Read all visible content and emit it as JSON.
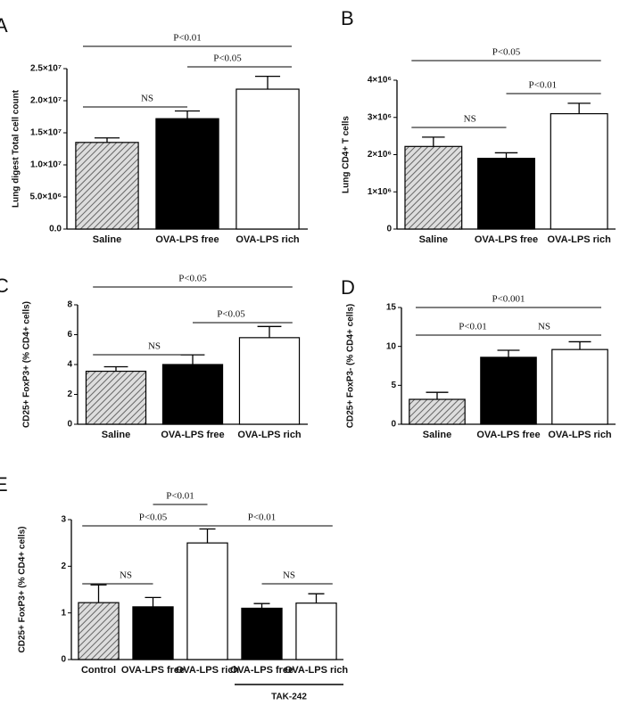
{
  "chart_data": [
    {
      "type": "bar",
      "panel": "A",
      "ylabel": "Lung digest Total cell count",
      "categories": [
        "Saline",
        "OVA-LPS free",
        "OVA-LPS rich"
      ],
      "values": [
        13500000,
        17200000,
        21800000
      ],
      "errors": [
        700000,
        1200000,
        2000000
      ],
      "colors": [
        "#bbbbbb",
        "#000000",
        "#ffffff"
      ],
      "patterns": [
        "hatch",
        "solid",
        "solid"
      ],
      "ylim": [
        0,
        25000000
      ],
      "yticks": [
        {
          "value": 0,
          "label": "0.0"
        },
        {
          "value": 5000000,
          "label": "5.0×10⁶"
        },
        {
          "value": 10000000,
          "label": "1.0×10⁷"
        },
        {
          "value": 15000000,
          "label": "1.5×10⁷"
        },
        {
          "value": 20000000,
          "label": "2.0×10⁷"
        },
        {
          "value": 25000000,
          "label": "2.5×10⁷"
        }
      ],
      "annotations": [
        "P<0.01",
        "P<0.05",
        "NS"
      ]
    },
    {
      "type": "bar",
      "panel": "B",
      "ylabel": "Lung CD4+ T cells",
      "categories": [
        "Saline",
        "OVA-LPS free",
        "OVA-LPS rich"
      ],
      "values": [
        2220000,
        1900000,
        3100000
      ],
      "errors": [
        250000,
        150000,
        280000
      ],
      "colors": [
        "#bbbbbb",
        "#000000",
        "#ffffff"
      ],
      "patterns": [
        "hatch",
        "solid",
        "solid"
      ],
      "ylim": [
        0,
        4000000
      ],
      "yticks": [
        0,
        {
          "value": 1000000,
          "label": "1×10⁶"
        },
        {
          "value": 2000000,
          "label": "2×10⁶"
        },
        {
          "value": 3000000,
          "label": "3×10⁶"
        },
        {
          "value": 4000000,
          "label": "4×10⁶"
        }
      ],
      "annotations": [
        "P<0.05",
        "P<0.01",
        "NS"
      ]
    },
    {
      "type": "bar",
      "panel": "C",
      "ylabel": "CD25+ FoxP3+ (% CD4+ cells)",
      "categories": [
        "Saline",
        "OVA-LPS free",
        "OVA-LPS rich"
      ],
      "values": [
        3.55,
        4.0,
        5.8
      ],
      "errors": [
        0.3,
        0.65,
        0.75
      ],
      "colors": [
        "#bbbbbb",
        "#000000",
        "#ffffff"
      ],
      "patterns": [
        "hatch",
        "solid",
        "solid"
      ],
      "ylim": [
        0,
        8
      ],
      "yticks": [
        0,
        2,
        4,
        6,
        8
      ],
      "annotations": [
        "P<0.05",
        "P<0.05",
        "NS"
      ]
    },
    {
      "type": "bar",
      "panel": "D",
      "ylabel": "CD25+ FoxP3- (% CD4+ cells)",
      "categories": [
        "Saline",
        "OVA-LPS free",
        "OVA-LPS rich"
      ],
      "values": [
        3.2,
        8.6,
        9.6
      ],
      "errors": [
        0.9,
        0.9,
        1.0
      ],
      "colors": [
        "#bbbbbb",
        "#000000",
        "#ffffff"
      ],
      "patterns": [
        "hatch",
        "solid",
        "solid"
      ],
      "ylim": [
        0,
        15
      ],
      "yticks": [
        0,
        5,
        10,
        15
      ],
      "annotations": [
        "P<0.001",
        "P<0.01",
        "NS"
      ]
    },
    {
      "type": "bar",
      "panel": "E",
      "ylabel": "CD25+ FoxP3+ (% CD4+ cells)",
      "categories": [
        "Control",
        "OVA-LPS free",
        "OVA-LPS rich",
        "OVA-LPS free",
        "OVA-LPS rich"
      ],
      "values": [
        1.22,
        1.13,
        2.5,
        1.1,
        1.21
      ],
      "errors": [
        0.38,
        0.2,
        0.3,
        0.1,
        0.2
      ],
      "colors": [
        "#bbbbbb",
        "#000000",
        "#ffffff",
        "#000000",
        "#ffffff"
      ],
      "patterns": [
        "hatch",
        "solid",
        "solid",
        "solid",
        "solid"
      ],
      "ylim": [
        0,
        3
      ],
      "yticks": [
        0,
        1,
        2,
        3
      ],
      "annotations": [
        "P<0.01",
        "P<0.05",
        "P<0.01",
        "NS",
        "NS"
      ],
      "group_label": "TAK-242"
    }
  ]
}
